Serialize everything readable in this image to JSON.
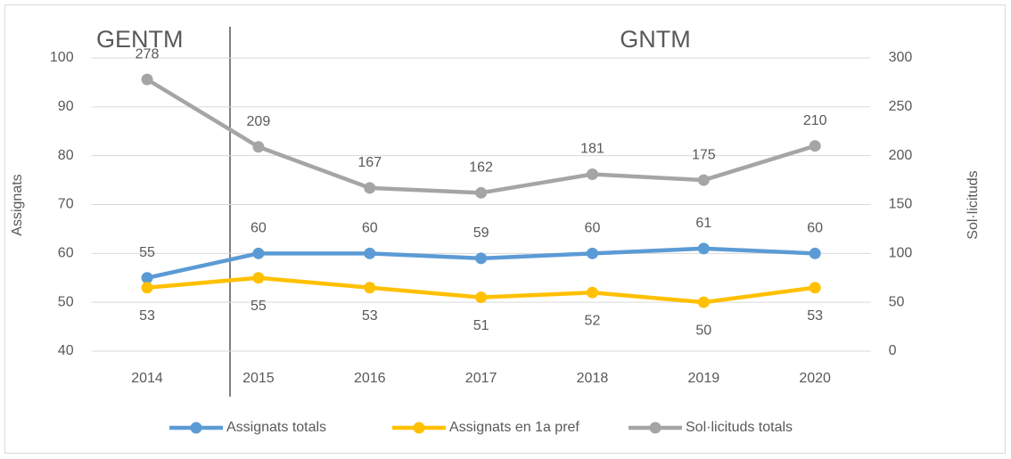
{
  "chart_data": {
    "type": "line",
    "categories": [
      "2014",
      "2015",
      "2016",
      "2017",
      "2018",
      "2019",
      "2020"
    ],
    "series": [
      {
        "name": "Assignats totals",
        "color": "#5b9bd5",
        "values": [
          55,
          60,
          60,
          59,
          60,
          61,
          60
        ]
      },
      {
        "name": "Assignats en 1a pref",
        "color": "#ffc000",
        "values": [
          53,
          55,
          53,
          51,
          52,
          50,
          53
        ]
      },
      {
        "name": "Sol·licituds totals",
        "color": "#a5a5a5",
        "axis": "y2",
        "values": [
          278,
          209,
          167,
          162,
          181,
          175,
          210
        ]
      }
    ],
    "ylabel": "Assignats",
    "y2label": "Sol·licituds",
    "ylim": [
      40,
      100
    ],
    "yticks": [
      40,
      50,
      60,
      70,
      80,
      90,
      100
    ],
    "y2lim": [
      0,
      300
    ],
    "y2ticks": [
      0,
      50,
      100,
      150,
      200,
      250,
      300
    ],
    "annotations": [
      "GENTM",
      "GNTM"
    ],
    "grid": true,
    "legend": "bottom"
  }
}
